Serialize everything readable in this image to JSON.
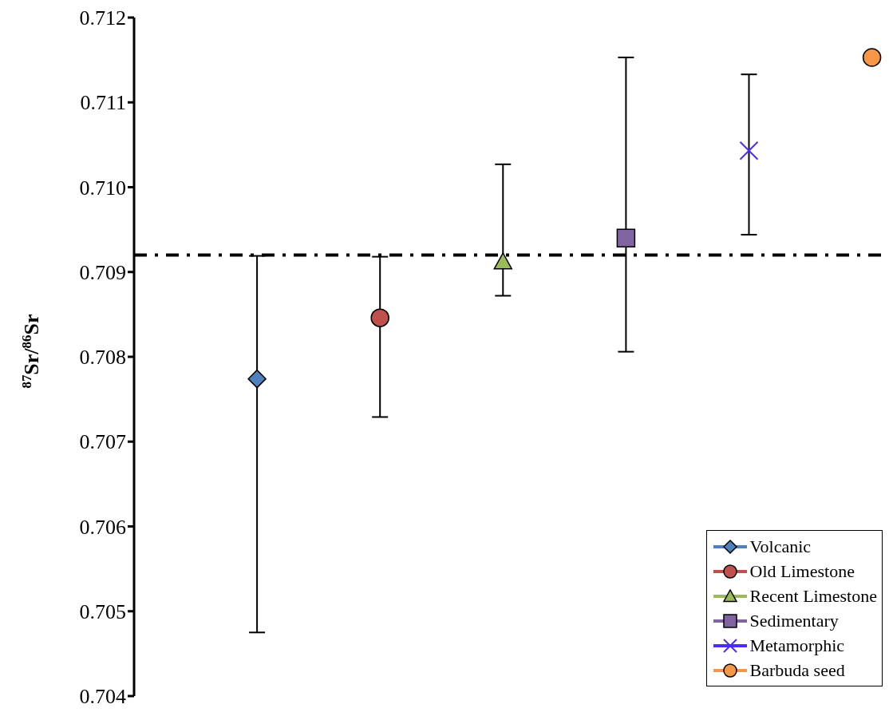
{
  "chart_data": {
    "type": "scatter",
    "ylabel": "$^{87}$Sr/$^{86}$Sr",
    "categories": [
      null,
      null,
      null,
      null,
      null,
      null,
      null
    ],
    "series": [
      {
        "name": "Volcanic",
        "color": "#4f81bd",
        "marker": "diamond",
        "values": [
          null,
          0.70774,
          null,
          null,
          null,
          null,
          null
        ],
        "errors": [
          null,
          [
            0.70475,
            0.70919
          ],
          null,
          null,
          null,
          null,
          null
        ]
      },
      {
        "name": "Old Limestone",
        "color": "#c0504d",
        "marker": "circle",
        "values": [
          null,
          null,
          0.70846,
          null,
          null,
          null,
          null
        ],
        "errors": [
          null,
          null,
          [
            0.70729,
            0.70918
          ],
          null,
          null,
          null,
          null
        ]
      },
      {
        "name": "Recent Limestone",
        "color": "#9bbb59",
        "marker": "triangle",
        "values": [
          null,
          null,
          null,
          0.70912,
          null,
          null,
          null
        ],
        "errors": [
          null,
          null,
          null,
          [
            0.70872,
            0.71027
          ],
          null,
          null,
          null
        ]
      },
      {
        "name": "Sedimentary",
        "color": "#8064a2",
        "marker": "square",
        "values": [
          null,
          null,
          null,
          null,
          0.7094,
          null,
          null
        ],
        "errors": [
          null,
          null,
          null,
          null,
          [
            0.70806,
            0.71153
          ],
          null,
          null
        ]
      },
      {
        "name": "Metamorphic",
        "color": "#4b2cff",
        "marker": "cross",
        "values": [
          null,
          null,
          null,
          null,
          null,
          0.71043,
          null
        ],
        "errors": [
          null,
          null,
          null,
          null,
          null,
          [
            0.70944,
            0.71133
          ],
          null
        ]
      },
      {
        "name": "Barbuda seed",
        "color": "#f79646",
        "marker": "circle",
        "values": [
          null,
          null,
          null,
          null,
          null,
          null,
          0.71153
        ]
      }
    ],
    "ylim": [
      0.704,
      0.712
    ],
    "yticks": [
      {
        "value": 0.704,
        "label": "0.704"
      },
      {
        "value": 0.705,
        "label": "0.705"
      },
      {
        "value": 0.706,
        "label": "0.706"
      },
      {
        "value": 0.707,
        "label": "0.707"
      },
      {
        "value": 0.708,
        "label": "0.708"
      },
      {
        "value": 0.709,
        "label": "0.709"
      },
      {
        "value": 0.71,
        "label": "0.710"
      },
      {
        "value": 0.711,
        "label": "0.711"
      },
      {
        "value": 0.712,
        "label": "0.712"
      }
    ],
    "ref_lines": [
      {
        "axis": "y",
        "value": 0.7092,
        "color": "#000000",
        "line_style": "dashdot"
      }
    ],
    "grid": false,
    "legend": "bottom right",
    "tick_labels": "y"
  }
}
